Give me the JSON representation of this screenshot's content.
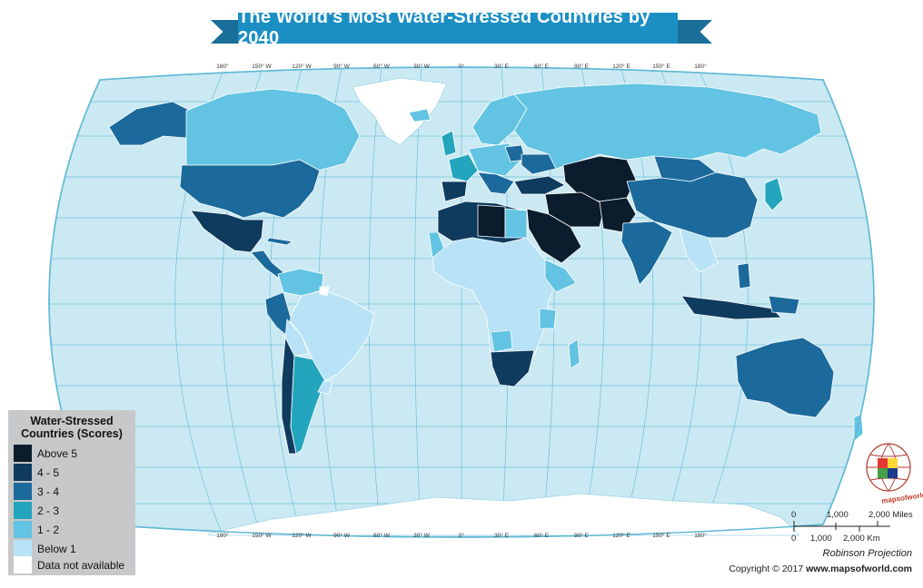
{
  "title": "The World's Most Water-Stressed Countries by 2040",
  "graticule_top": [
    "180°",
    "150° W",
    "120° W",
    "90° W",
    "60° W",
    "30° W",
    "0°",
    "30° E",
    "60° E",
    "90° E",
    "120° E",
    "150° E",
    "180°"
  ],
  "graticule_bottom": [
    "180°",
    "150° W",
    "120° W",
    "90° W",
    "60° W",
    "30° W",
    "0°",
    "30° E",
    "60° E",
    "90° E",
    "120° E",
    "150° E",
    "180°"
  ],
  "legend": {
    "title_line1": "Water-Stressed",
    "title_line2": "Countries (Scores)",
    "items": [
      {
        "label": "Above 5",
        "color": "#0b1c2c"
      },
      {
        "label": "4 - 5",
        "color": "#0f3b5f"
      },
      {
        "label": "3 - 4",
        "color": "#1c6a9c"
      },
      {
        "label": "2 - 3",
        "color": "#23a5bd"
      },
      {
        "label": "1 - 2",
        "color": "#62c3e2"
      },
      {
        "label": "Below 1",
        "color": "#b8e2f5"
      },
      {
        "label": "Data not available",
        "color": "#ffffff"
      }
    ]
  },
  "scale": {
    "miles_ticks": [
      "0",
      "1,000",
      "2,000 Miles"
    ],
    "km_ticks": [
      "0",
      "1,000",
      "2,000 Km"
    ]
  },
  "projection": "Robinson Projection",
  "copyright_prefix": "Copyright © 2017 ",
  "copyright_site": "www.mapsofworld.com",
  "logo_text": "mapsofworld.com",
  "colors": {
    "ocean": "#cbe9f2",
    "ocean_stroke": "#5fb9d6",
    "grid": "#6cc0dc",
    "title_band": "#1b8fc4"
  }
}
